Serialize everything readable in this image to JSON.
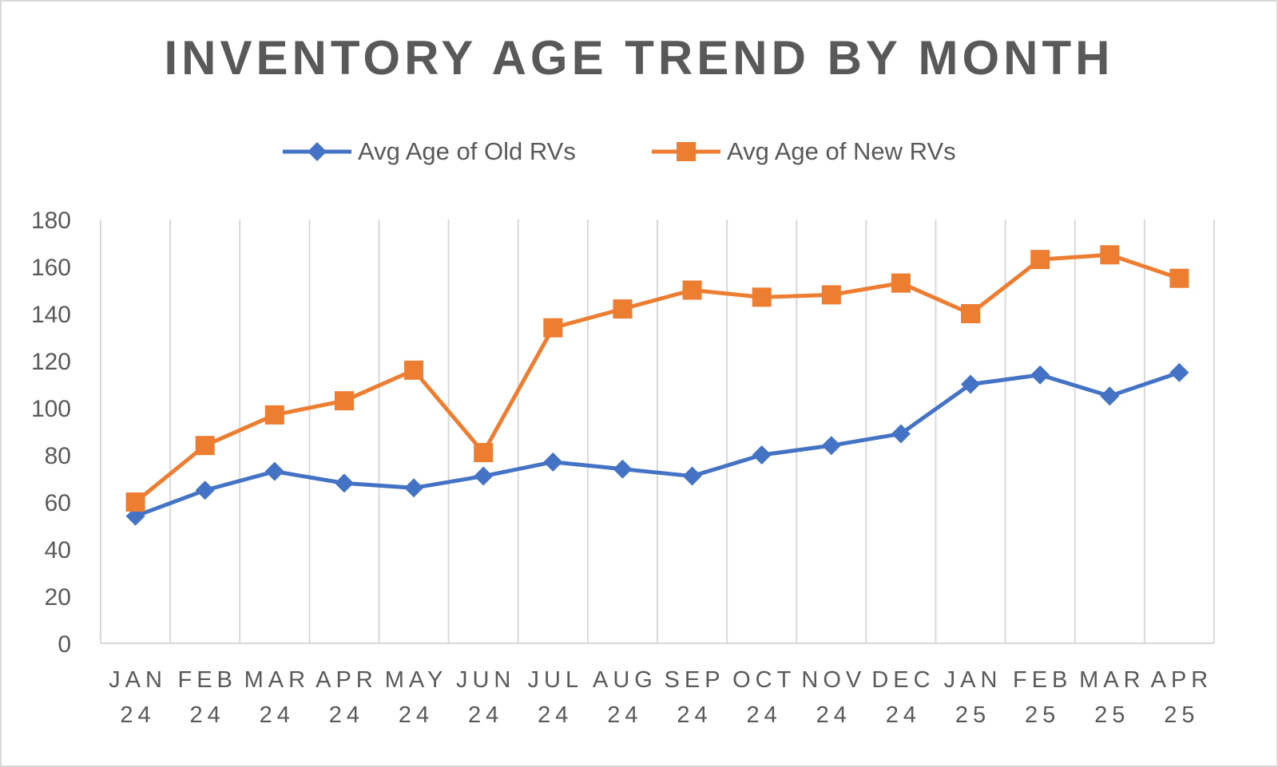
{
  "chart_data": {
    "type": "line",
    "title": "INVENTORY AGE TREND BY MONTH",
    "xlabel": "",
    "ylabel": "",
    "ylim": [
      0,
      180
    ],
    "yticks": [
      0,
      20,
      40,
      60,
      80,
      100,
      120,
      140,
      160,
      180
    ],
    "grid": "vertical",
    "legend": "top",
    "categories": [
      [
        "JAN",
        "24"
      ],
      [
        "FEB",
        "24"
      ],
      [
        "MAR",
        "24"
      ],
      [
        "APR",
        "24"
      ],
      [
        "MAY",
        "24"
      ],
      [
        "JUN",
        "24"
      ],
      [
        "JUL",
        "24"
      ],
      [
        "AUG",
        "24"
      ],
      [
        "SEP",
        "24"
      ],
      [
        "OCT",
        "24"
      ],
      [
        "NOV",
        "24"
      ],
      [
        "DEC",
        "24"
      ],
      [
        "JAN",
        "25"
      ],
      [
        "FEB",
        "25"
      ],
      [
        "MAR",
        "25"
      ],
      [
        "APR",
        "25"
      ]
    ],
    "series": [
      {
        "name": "Avg Age of Old RVs",
        "color": "#4472c4",
        "marker": "diamond",
        "values": [
          54,
          65,
          73,
          68,
          66,
          71,
          77,
          74,
          71,
          80,
          84,
          89,
          110,
          114,
          105,
          115
        ]
      },
      {
        "name": "Avg Age of New RVs",
        "color": "#ed7d31",
        "marker": "square",
        "values": [
          60,
          84,
          97,
          103,
          116,
          81,
          134,
          142,
          150,
          147,
          148,
          153,
          140,
          163,
          165,
          155
        ]
      }
    ]
  }
}
